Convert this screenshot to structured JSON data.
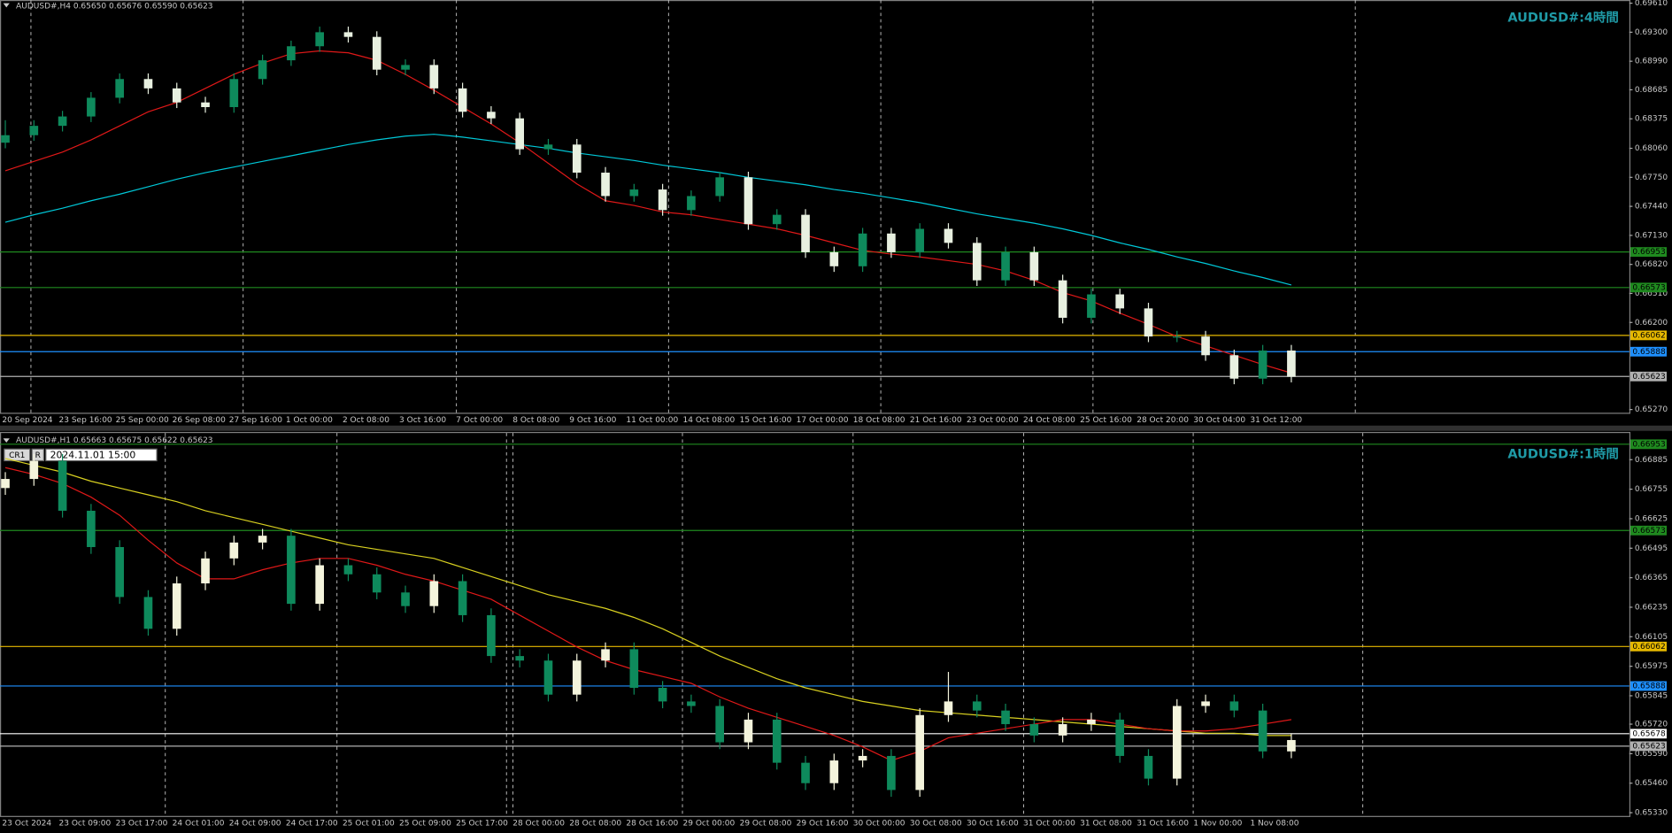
{
  "panels": [
    {
      "header": "AUDUSD#,H4  0.65650 0.65676 0.65590 0.65623",
      "title": "AUDUSD#:4時間",
      "ylim": [
        0.65224,
        0.69644
      ],
      "yticks": [
        {
          "value": 0.6961,
          "label": "0.69610"
        },
        {
          "value": 0.693,
          "label": "0.69300"
        },
        {
          "value": 0.6899,
          "label": "0.68990"
        },
        {
          "value": 0.68685,
          "label": "0.68685"
        },
        {
          "value": 0.68375,
          "label": "0.68375"
        },
        {
          "value": 0.6806,
          "label": "0.68060"
        },
        {
          "value": 0.6775,
          "label": "0.67750"
        },
        {
          "value": 0.6744,
          "label": "0.67440"
        },
        {
          "value": 0.6713,
          "label": "0.67130"
        },
        {
          "value": 0.6682,
          "label": "0.66820"
        },
        {
          "value": 0.6651,
          "label": "0.66510"
        },
        {
          "value": 0.662,
          "label": "0.66200"
        },
        {
          "value": 0.6527,
          "label": "0.65270"
        }
      ],
      "time_labels": [
        "20 Sep 2024",
        "23 Sep 16:00",
        "25 Sep 00:00",
        "26 Sep 08:00",
        "27 Sep 16:00",
        "1 Oct 00:00",
        "2 Oct 08:00",
        "3 Oct 16:00",
        "7 Oct 00:00",
        "8 Oct 08:00",
        "9 Oct 16:00",
        "11 Oct 00:00",
        "14 Oct 08:00",
        "15 Oct 16:00",
        "17 Oct 00:00",
        "18 Oct 08:00",
        "21 Oct 16:00",
        "23 Oct 00:00",
        "24 Oct 08:00",
        "25 Oct 16:00",
        "28 Oct 20:00",
        "30 Oct 04:00",
        "31 Oct 12:00"
      ],
      "levels": [
        {
          "value": 0.66953,
          "color": "#1f8a1f"
        },
        {
          "value": 0.66573,
          "color": "#1f8a1f"
        },
        {
          "value": 0.66062,
          "color": "#e6b800"
        },
        {
          "value": 0.65888,
          "color": "#1e90ff"
        },
        {
          "value": 0.65623,
          "color": "#b0b0b0"
        }
      ],
      "up_color": "#0e8a5c",
      "down_color": "#e8f0e0",
      "candles": [
        [
          0.6812,
          0.6836,
          0.6806,
          0.682
        ],
        [
          0.682,
          0.6836,
          0.6814,
          0.683
        ],
        [
          0.683,
          0.6846,
          0.6824,
          0.684
        ],
        [
          0.684,
          0.6866,
          0.6834,
          0.686
        ],
        [
          0.686,
          0.6886,
          0.6854,
          0.688
        ],
        [
          0.688,
          0.6886,
          0.6864,
          0.687
        ],
        [
          0.687,
          0.6876,
          0.6849,
          0.6855
        ],
        [
          0.6855,
          0.6861,
          0.6844,
          0.685
        ],
        [
          0.685,
          0.6886,
          0.6844,
          0.688
        ],
        [
          0.688,
          0.6906,
          0.6874,
          0.69
        ],
        [
          0.69,
          0.6921,
          0.6894,
          0.6915
        ],
        [
          0.6915,
          0.6936,
          0.6909,
          0.693
        ],
        [
          0.693,
          0.6936,
          0.6919,
          0.6925
        ],
        [
          0.6925,
          0.6931,
          0.6884,
          0.689
        ],
        [
          0.689,
          0.6901,
          0.6884,
          0.6895
        ],
        [
          0.6895,
          0.6901,
          0.6864,
          0.687
        ],
        [
          0.687,
          0.6876,
          0.6839,
          0.6845
        ],
        [
          0.6845,
          0.6851,
          0.6832,
          0.6838
        ],
        [
          0.6838,
          0.6844,
          0.6799,
          0.6805
        ],
        [
          0.6805,
          0.6816,
          0.6799,
          0.681
        ],
        [
          0.681,
          0.6816,
          0.6774,
          0.678
        ],
        [
          0.678,
          0.6786,
          0.6749,
          0.6755
        ],
        [
          0.6755,
          0.6768,
          0.6749,
          0.6762
        ],
        [
          0.6762,
          0.6768,
          0.6734,
          0.674
        ],
        [
          0.674,
          0.6761,
          0.6734,
          0.6755
        ],
        [
          0.6755,
          0.6781,
          0.6749,
          0.6775
        ],
        [
          0.6775,
          0.6781,
          0.6719,
          0.6725
        ],
        [
          0.6725,
          0.6741,
          0.6719,
          0.6735
        ],
        [
          0.6735,
          0.6741,
          0.6689,
          0.6695
        ],
        [
          0.6695,
          0.6701,
          0.6674,
          0.668
        ],
        [
          0.668,
          0.6721,
          0.6674,
          0.6715
        ],
        [
          0.6715,
          0.6721,
          0.6689,
          0.6695
        ],
        [
          0.6695,
          0.6726,
          0.6689,
          0.672
        ],
        [
          0.672,
          0.6726,
          0.6699,
          0.6705
        ],
        [
          0.6705,
          0.6711,
          0.6659,
          0.6665
        ],
        [
          0.6665,
          0.6701,
          0.6659,
          0.6695
        ],
        [
          0.6695,
          0.6701,
          0.6659,
          0.6665
        ],
        [
          0.6665,
          0.6671,
          0.6619,
          0.6625
        ],
        [
          0.6625,
          0.6656,
          0.6619,
          0.665
        ],
        [
          0.665,
          0.6656,
          0.6629,
          0.6635
        ],
        [
          0.6635,
          0.6641,
          0.6599,
          0.6605
        ],
        [
          0.6605,
          0.6611,
          0.6599,
          0.6605
        ],
        [
          0.6605,
          0.6611,
          0.6579,
          0.6585
        ],
        [
          0.6585,
          0.6591,
          0.6554,
          0.656
        ],
        [
          0.656,
          0.6596,
          0.6554,
          0.659
        ],
        [
          0.659,
          0.6596,
          0.6556,
          0.6562
        ]
      ],
      "mas": [
        {
          "color": "#00c8d8",
          "values": [
            0.6727,
            0.6735,
            0.6742,
            0.675,
            0.6757,
            0.6765,
            0.6773,
            0.678,
            0.6786,
            0.6792,
            0.6798,
            0.6804,
            0.681,
            0.6815,
            0.6819,
            0.6821,
            0.6818,
            0.6814,
            0.681,
            0.6806,
            0.6801,
            0.6797,
            0.6793,
            0.6788,
            0.6784,
            0.678,
            0.6775,
            0.6771,
            0.6767,
            0.6762,
            0.6758,
            0.6753,
            0.6748,
            0.6742,
            0.6736,
            0.6731,
            0.6726,
            0.672,
            0.6713,
            0.6705,
            0.6698,
            0.669,
            0.6683,
            0.6675,
            0.6668,
            0.666
          ]
        },
        {
          "color": "#e01818",
          "values": [
            0.6782,
            0.6792,
            0.6802,
            0.6815,
            0.683,
            0.6845,
            0.6855,
            0.687,
            0.6885,
            0.6897,
            0.6907,
            0.691,
            0.6908,
            0.69,
            0.6885,
            0.6868,
            0.685,
            0.6832,
            0.6812,
            0.679,
            0.6768,
            0.675,
            0.6745,
            0.6738,
            0.6735,
            0.673,
            0.6725,
            0.672,
            0.6713,
            0.6705,
            0.6697,
            0.6693,
            0.669,
            0.6686,
            0.6682,
            0.6675,
            0.6665,
            0.6652,
            0.6643,
            0.663,
            0.6618,
            0.6605,
            0.6595,
            0.6585,
            0.6575,
            0.6566
          ]
        }
      ]
    },
    {
      "header": "AUDUSD#,H1  0.65663 0.65675 0.65622 0.65623",
      "title": "AUDUSD#:1時間",
      "ylim": [
        0.65311,
        0.67007
      ],
      "yticks": [
        {
          "value": 0.66885,
          "label": "0.66885"
        },
        {
          "value": 0.66755,
          "label": "0.66755"
        },
        {
          "value": 0.66625,
          "label": "0.66625"
        },
        {
          "value": 0.66495,
          "label": "0.66495"
        },
        {
          "value": 0.66365,
          "label": "0.66365"
        },
        {
          "value": 0.66235,
          "label": "0.66235"
        },
        {
          "value": 0.66105,
          "label": "0.66105"
        },
        {
          "value": 0.65975,
          "label": "0.65975"
        },
        {
          "value": 0.65845,
          "label": "0.65845"
        },
        {
          "value": 0.6572,
          "label": "0.65720"
        },
        {
          "value": 0.6559,
          "label": "0.65590"
        },
        {
          "value": 0.6546,
          "label": "0.65460"
        },
        {
          "value": 0.6533,
          "label": "0.65330"
        }
      ],
      "time_labels": [
        "23 Oct 2024",
        "23 Oct 09:00",
        "23 Oct 17:00",
        "24 Oct 01:00",
        "24 Oct 09:00",
        "24 Oct 17:00",
        "25 Oct 01:00",
        "25 Oct 09:00",
        "25 Oct 17:00",
        "28 Oct 00:00",
        "28 Oct 08:00",
        "28 Oct 16:00",
        "29 Oct 00:00",
        "29 Oct 08:00",
        "29 Oct 16:00",
        "30 Oct 00:00",
        "30 Oct 08:00",
        "30 Oct 16:00",
        "31 Oct 00:00",
        "31 Oct 08:00",
        "31 Oct 16:00",
        "1 Nov 00:00",
        "1 Nov 08:00"
      ],
      "levels": [
        {
          "value": 0.66953,
          "color": "#1f8a1f"
        },
        {
          "value": 0.66573,
          "color": "#1f8a1f"
        },
        {
          "value": 0.66062,
          "color": "#e6b800"
        },
        {
          "value": 0.65888,
          "color": "#1e90ff"
        },
        {
          "value": 0.65678,
          "color": "#ffffff"
        },
        {
          "value": 0.65623,
          "color": "#b0b0b0"
        }
      ],
      "up_color": "#f4f4dc",
      "down_color": "#0e8a5c",
      "candles": [
        [
          0.6676,
          0.6683,
          0.6673,
          0.668
        ],
        [
          0.668,
          0.6691,
          0.6677,
          0.6688
        ],
        [
          0.6688,
          0.6691,
          0.6663,
          0.6666
        ],
        [
          0.6666,
          0.6669,
          0.6647,
          0.665
        ],
        [
          0.665,
          0.6653,
          0.6625,
          0.6628
        ],
        [
          0.6628,
          0.6631,
          0.6611,
          0.6614
        ],
        [
          0.6614,
          0.6637,
          0.6611,
          0.6634
        ],
        [
          0.6634,
          0.6648,
          0.6631,
          0.6645
        ],
        [
          0.6645,
          0.6655,
          0.6642,
          0.6652
        ],
        [
          0.6652,
          0.6658,
          0.6649,
          0.6655
        ],
        [
          0.6655,
          0.6658,
          0.6622,
          0.6625
        ],
        [
          0.6625,
          0.6645,
          0.6622,
          0.6642
        ],
        [
          0.6642,
          0.6645,
          0.6635,
          0.6638
        ],
        [
          0.6638,
          0.6641,
          0.6627,
          0.663
        ],
        [
          0.663,
          0.6633,
          0.6621,
          0.6624
        ],
        [
          0.6624,
          0.6638,
          0.6621,
          0.6635
        ],
        [
          0.6635,
          0.6638,
          0.6617,
          0.662
        ],
        [
          0.662,
          0.6623,
          0.6599,
          0.6602
        ],
        [
          0.6602,
          0.6605,
          0.6597,
          0.66
        ],
        [
          0.66,
          0.6603,
          0.6582,
          0.6585
        ],
        [
          0.6585,
          0.6603,
          0.6582,
          0.66
        ],
        [
          0.66,
          0.6608,
          0.6597,
          0.6605
        ],
        [
          0.6605,
          0.6608,
          0.6585,
          0.6588
        ],
        [
          0.6588,
          0.6591,
          0.6579,
          0.6582
        ],
        [
          0.6582,
          0.6585,
          0.6577,
          0.658
        ],
        [
          0.658,
          0.6583,
          0.6561,
          0.6564
        ],
        [
          0.6564,
          0.6577,
          0.6561,
          0.6574
        ],
        [
          0.6574,
          0.6577,
          0.6552,
          0.6555
        ],
        [
          0.6555,
          0.6558,
          0.6543,
          0.6546
        ],
        [
          0.6546,
          0.6559,
          0.6543,
          0.6556
        ],
        [
          0.6556,
          0.6561,
          0.6553,
          0.6558
        ],
        [
          0.6558,
          0.6561,
          0.654,
          0.6543
        ],
        [
          0.6543,
          0.6579,
          0.654,
          0.6576
        ],
        [
          0.6576,
          0.6595,
          0.6573,
          0.6582
        ],
        [
          0.6582,
          0.6585,
          0.6575,
          0.6578
        ],
        [
          0.6578,
          0.6581,
          0.6569,
          0.6572
        ],
        [
          0.6572,
          0.6575,
          0.6564,
          0.6567
        ],
        [
          0.6567,
          0.6575,
          0.6564,
          0.6572
        ],
        [
          0.6572,
          0.6577,
          0.6569,
          0.6574
        ],
        [
          0.6574,
          0.6577,
          0.6555,
          0.6558
        ],
        [
          0.6558,
          0.6561,
          0.6545,
          0.6548
        ],
        [
          0.6548,
          0.6583,
          0.6545,
          0.658
        ],
        [
          0.658,
          0.6585,
          0.6577,
          0.6582
        ],
        [
          0.6582,
          0.6585,
          0.6575,
          0.6578
        ],
        [
          0.6578,
          0.6581,
          0.6557,
          0.656
        ],
        [
          0.656,
          0.6568,
          0.6557,
          0.6565
        ]
      ],
      "mas": [
        {
          "color": "#d8d020",
          "values": [
            0.6689,
            0.6686,
            0.6683,
            0.6679,
            0.6676,
            0.6673,
            0.667,
            0.6666,
            0.6663,
            0.666,
            0.6657,
            0.6654,
            0.6651,
            0.6649,
            0.6647,
            0.6645,
            0.6641,
            0.6637,
            0.6633,
            0.6629,
            0.6626,
            0.6623,
            0.6619,
            0.6614,
            0.6608,
            0.6602,
            0.6597,
            0.6592,
            0.6588,
            0.6585,
            0.6582,
            0.658,
            0.6578,
            0.6577,
            0.6576,
            0.6575,
            0.6574,
            0.6573,
            0.6572,
            0.6571,
            0.657,
            0.6569,
            0.6568,
            0.6568,
            0.6567,
            0.6567
          ]
        },
        {
          "color": "#e01818",
          "values": [
            0.6685,
            0.6682,
            0.6678,
            0.6672,
            0.6664,
            0.6653,
            0.6643,
            0.6636,
            0.6636,
            0.664,
            0.6643,
            0.6645,
            0.6645,
            0.6642,
            0.6638,
            0.6635,
            0.6631,
            0.6627,
            0.662,
            0.6613,
            0.6606,
            0.66,
            0.6596,
            0.6593,
            0.659,
            0.6584,
            0.6579,
            0.6575,
            0.6571,
            0.6567,
            0.6562,
            0.6556,
            0.656,
            0.6566,
            0.6568,
            0.657,
            0.6572,
            0.6574,
            0.6574,
            0.6572,
            0.657,
            0.6569,
            0.6569,
            0.657,
            0.6572,
            0.6574
          ]
        }
      ]
    }
  ],
  "toolbar": {
    "cr": "CR1",
    "r": "R",
    "date": "2024.11.01 15:00"
  }
}
